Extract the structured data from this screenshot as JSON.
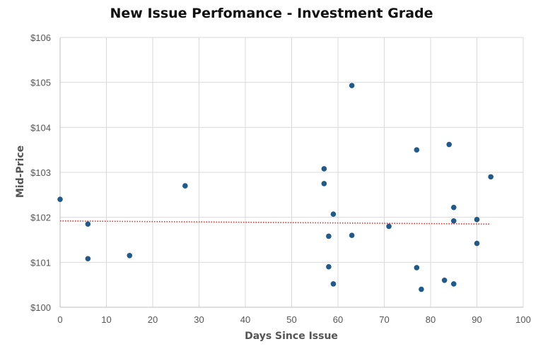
{
  "chart_data": {
    "type": "scatter",
    "title": "New Issue Perfomance - Investment Grade",
    "xlabel": "Days Since Issue",
    "ylabel": "Mid-Price",
    "xlim": [
      0,
      100
    ],
    "ylim": [
      100,
      106
    ],
    "x_ticks": [
      0,
      10,
      20,
      30,
      40,
      50,
      60,
      70,
      80,
      90,
      100
    ],
    "y_ticks": [
      100,
      101,
      102,
      103,
      104,
      105,
      106
    ],
    "x_tick_labels": [
      "0",
      "10",
      "20",
      "30",
      "40",
      "50",
      "60",
      "70",
      "80",
      "90",
      "100"
    ],
    "y_tick_labels": [
      "$100",
      "$101",
      "$102",
      "$103",
      "$104",
      "$105",
      "$106"
    ],
    "grid": true,
    "legend": "none",
    "point_color": "#1f5a8a",
    "trendline": {
      "style": "dotted",
      "color": "#e03030",
      "x": [
        0,
        93
      ],
      "y": [
        101.92,
        101.85
      ]
    },
    "series": [
      {
        "points": [
          [
            0,
            102.4
          ],
          [
            6,
            101.85
          ],
          [
            6,
            101.08
          ],
          [
            15,
            101.15
          ],
          [
            27,
            102.7
          ],
          [
            57,
            103.08
          ],
          [
            57,
            102.75
          ],
          [
            58,
            101.58
          ],
          [
            58,
            100.9
          ],
          [
            59,
            102.07
          ],
          [
            59,
            100.52
          ],
          [
            63,
            104.93
          ],
          [
            63,
            101.6
          ],
          [
            71,
            101.8
          ],
          [
            77,
            103.5
          ],
          [
            77,
            100.88
          ],
          [
            78,
            100.4
          ],
          [
            83,
            100.6
          ],
          [
            84,
            103.62
          ],
          [
            85,
            102.22
          ],
          [
            85,
            101.92
          ],
          [
            85,
            100.52
          ],
          [
            90,
            101.95
          ],
          [
            90,
            101.42
          ],
          [
            93,
            102.9
          ]
        ]
      }
    ]
  }
}
